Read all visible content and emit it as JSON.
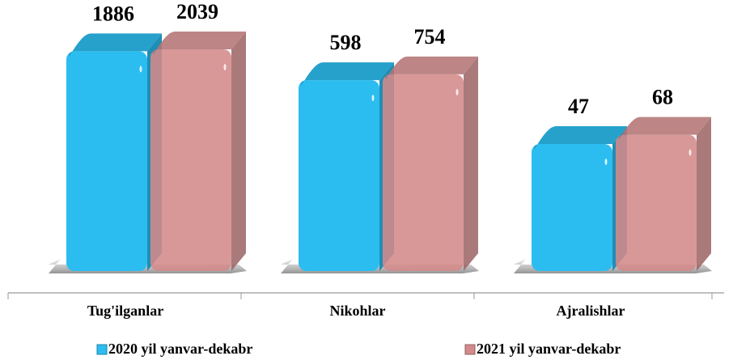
{
  "chart_data": {
    "type": "bar3d",
    "categories": [
      "Tug'ilganlar",
      "Nikohlar",
      "Ajralishlar"
    ],
    "series": [
      {
        "name": "2020 yil yanvar-dekabr",
        "color": "#2bbdf0",
        "values": [
          1886,
          598,
          47
        ]
      },
      {
        "name": "2021 yil yanvar-dekabr",
        "color": "#d48a8a",
        "values": [
          2039,
          754,
          68
        ]
      }
    ],
    "log_scale": true,
    "ylim": [
      0.3,
      3000
    ],
    "legend": "bottom"
  }
}
